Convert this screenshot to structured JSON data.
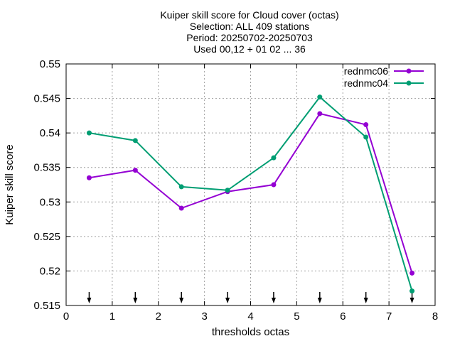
{
  "chart_data": {
    "type": "line",
    "title_lines": [
      "Kuiper skill score  for Cloud cover (octas)",
      "Selection: ALL    409 stations",
      "Period: 20250702-20250703",
      "Used 00,12 + 01 02 ... 36"
    ],
    "xlabel": "thresholds octas",
    "ylabel": "Kuiper skill score",
    "xlim": [
      0,
      8
    ],
    "ylim": [
      0.515,
      0.55
    ],
    "xticks": [
      0,
      1,
      2,
      3,
      4,
      5,
      6,
      7,
      8
    ],
    "yticks": [
      0.515,
      0.52,
      0.525,
      0.53,
      0.535,
      0.54,
      0.545,
      0.55
    ],
    "ytick_labels": [
      "0.515",
      "0.52",
      "0.525",
      "0.53",
      "0.535",
      "0.54",
      "0.545",
      "0.55"
    ],
    "grid": true,
    "legend_position": "top-right",
    "x": [
      0.5,
      1.5,
      2.5,
      3.5,
      4.5,
      5.5,
      6.5,
      7.5
    ],
    "series": [
      {
        "name": "rednmc06",
        "color": "#9400d3",
        "values": [
          0.5335,
          0.5346,
          0.5291,
          0.5315,
          0.5325,
          0.5428,
          0.5412,
          0.5197
        ]
      },
      {
        "name": "rednmc04",
        "color": "#009e73",
        "values": [
          0.54,
          0.5389,
          0.5322,
          0.5317,
          0.5364,
          0.5452,
          0.5394,
          0.5171
        ]
      }
    ],
    "arrow_markers_x": [
      0.5,
      1.5,
      2.5,
      3.5,
      4.5,
      5.5,
      6.5,
      7.5
    ]
  }
}
